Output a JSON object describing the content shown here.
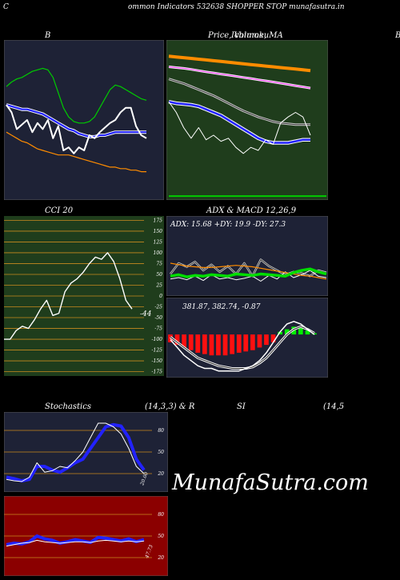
{
  "header": {
    "left_letter": "C",
    "title": "ommon  Indicators 532638  SHOPPER STOP munafasutra.in"
  },
  "panels": {
    "bb": {
      "title": "B"
    },
    "price": {
      "title": "Price,  Volume,  MA",
      "title_overlap": "Ichimoku"
    },
    "edge": {
      "title": "B"
    },
    "cci": {
      "title": "CCI 20",
      "value_label": "-44"
    },
    "adx": {
      "title": "ADX  & MACD 12,26,9",
      "adx_label": "ADX: 15.68  +DY: 19.9 -DY: 27.3",
      "macd_label": "381.87,  382.74,  -0.87"
    },
    "stoch": {
      "title_left": "Stochastics",
      "title_mid": "(14,3,3) & R",
      "title_si": "SI",
      "title_right": "(14,5",
      "value_label": "20.00"
    },
    "rsi": {
      "value_label": "47.73"
    }
  },
  "watermark": "MunafaSutra.com",
  "colors": {
    "panel_dark": "#1e2236",
    "panel_green": "#1f3d1c",
    "panel_red": "#8b0000",
    "gridline": "#c88a1e",
    "green_band": "#00cc00",
    "blue_line": "#2222ff",
    "orange": "#ff8c00",
    "white": "#ffffff"
  },
  "chart_data": [
    {
      "type": "line",
      "name": "bollinger",
      "title": "B",
      "ylim": [
        0,
        100
      ],
      "series": [
        {
          "name": "upper",
          "values": [
            72,
            75,
            77,
            78,
            80,
            82,
            83,
            84,
            83,
            78,
            68,
            58,
            52,
            49,
            48,
            48,
            49,
            52,
            58,
            64,
            70,
            73,
            72,
            70,
            68,
            66,
            64,
            63
          ]
        },
        {
          "name": "middle",
          "values": [
            60,
            59,
            58,
            57,
            57,
            56,
            55,
            54,
            52,
            50,
            48,
            46,
            44,
            43,
            41,
            40,
            39,
            39,
            40,
            40,
            41,
            42,
            42,
            42,
            42,
            42,
            42,
            42
          ]
        },
        {
          "name": "lower",
          "values": [
            42,
            40,
            38,
            36,
            35,
            33,
            31,
            30,
            29,
            28,
            27,
            27,
            27,
            26,
            25,
            24,
            23,
            22,
            21,
            20,
            19,
            19,
            18,
            18,
            17,
            17,
            16,
            16
          ]
        },
        {
          "name": "price",
          "values": [
            60,
            55,
            44,
            47,
            50,
            42,
            48,
            44,
            50,
            38,
            46,
            30,
            32,
            28,
            32,
            30,
            40,
            38,
            42,
            45,
            48,
            50,
            55,
            58,
            58,
            46,
            40,
            38
          ]
        }
      ]
    },
    {
      "type": "line",
      "name": "price_ma",
      "title": "Price,  Volume,  MA",
      "ylim": [
        0,
        100
      ],
      "series": [
        {
          "name": "ma_orange",
          "values": [
            92,
            91.5,
            91,
            90.5,
            90,
            89.5,
            89,
            88.5,
            88,
            87.5,
            87,
            86.5,
            86,
            85.5,
            85,
            84.5,
            84,
            83.5,
            83,
            82.5
          ]
        },
        {
          "name": "ma_magenta",
          "values": [
            85,
            84.5,
            84,
            83.3,
            82.5,
            81.7,
            81,
            80.2,
            79.5,
            78.8,
            78,
            77.3,
            76.5,
            75.8,
            75,
            74.2,
            73.4,
            72.6,
            71.8,
            71
          ]
        },
        {
          "name": "ma_grey",
          "values": [
            77,
            75.5,
            74,
            72,
            70,
            68,
            66,
            63.5,
            61,
            58.5,
            56,
            54,
            52,
            50.5,
            49,
            48,
            47.5,
            47,
            47,
            47
          ]
        },
        {
          "name": "ma_blue",
          "values": [
            62,
            61,
            60.5,
            60,
            59,
            57,
            55,
            53,
            50,
            47,
            44,
            41,
            38,
            36,
            35,
            35,
            35,
            36,
            37,
            37
          ]
        },
        {
          "name": "price",
          "values": [
            62,
            55,
            45,
            38,
            45,
            37,
            40,
            36,
            38,
            32,
            28,
            32,
            30,
            37,
            34,
            48,
            52,
            55,
            52,
            40
          ]
        },
        {
          "name": "volume_base",
          "values": [
            1,
            1,
            1,
            1,
            1,
            1,
            1,
            1,
            1,
            1,
            1,
            1,
            1,
            1,
            1,
            1,
            1,
            1,
            1,
            1
          ]
        }
      ]
    },
    {
      "type": "line",
      "name": "cci",
      "title": "CCI 20",
      "ylim": [
        -185,
        185
      ],
      "ticks": [
        175,
        150,
        125,
        100,
        75,
        50,
        25,
        0,
        -25,
        -50,
        -75,
        -100,
        -125,
        -150,
        -175
      ],
      "series": [
        {
          "name": "cci",
          "values": [
            -100,
            -100,
            -80,
            -70,
            -75,
            -55,
            -30,
            -10,
            -45,
            -40,
            10,
            30,
            40,
            55,
            75,
            90,
            85,
            100,
            80,
            40,
            -10,
            -30
          ]
        }
      ]
    },
    {
      "type": "line",
      "name": "adx",
      "ylim": [
        0,
        100
      ],
      "series": [
        {
          "name": "adx_orange",
          "values": [
            40,
            38,
            36,
            35,
            34,
            34,
            35,
            36,
            37,
            36,
            35,
            33,
            31,
            29,
            27,
            25,
            23,
            22,
            20,
            18
          ]
        },
        {
          "name": "plus_dy",
          "values": [
            18,
            20,
            17,
            22,
            16,
            24,
            18,
            20,
            17,
            19,
            22,
            15,
            23,
            18,
            28,
            20,
            24,
            30,
            22,
            20
          ]
        },
        {
          "name": "minus_dy",
          "values": [
            25,
            40,
            35,
            42,
            30,
            38,
            28,
            36,
            25,
            40,
            22,
            45,
            36,
            30,
            24,
            28,
            26,
            22,
            30,
            27
          ]
        },
        {
          "name": "green_strength",
          "values": [
            22,
            24,
            21,
            23,
            22,
            24,
            23,
            22,
            25,
            24,
            23,
            25,
            24,
            23,
            22,
            27,
            30,
            32,
            28,
            25
          ]
        }
      ]
    },
    {
      "type": "bar",
      "name": "macd",
      "ylim": [
        -15,
        8
      ],
      "series": [
        {
          "name": "histogram",
          "values": [
            -3,
            -4,
            -5,
            -6,
            -7,
            -7.5,
            -8,
            -8,
            -8,
            -7.5,
            -7,
            -6.5,
            -6,
            -5,
            -4,
            -3,
            1,
            2,
            3,
            2.5,
            1.5,
            0.5
          ]
        },
        {
          "name": "macd_line",
          "values": [
            -2,
            -5,
            -8,
            -10,
            -12,
            -13,
            -13,
            -14,
            -14,
            -14,
            -14,
            -13,
            -12,
            -10,
            -7,
            -3,
            1,
            4,
            5,
            4,
            2,
            0
          ]
        },
        {
          "name": "signal_line",
          "values": [
            -1,
            -3,
            -5,
            -7,
            -9,
            -10,
            -11,
            -12,
            -12.5,
            -13,
            -13,
            -13,
            -12.5,
            -11,
            -9,
            -6,
            -3,
            0,
            2,
            3,
            2,
            0.5
          ]
        }
      ]
    },
    {
      "type": "line",
      "name": "stochastics",
      "ylim": [
        0,
        100
      ],
      "ticks": [
        80,
        50,
        20
      ],
      "series": [
        {
          "name": "k_blue",
          "values": [
            15,
            13,
            10,
            12,
            30,
            30,
            25,
            22,
            28,
            35,
            40,
            55,
            70,
            85,
            88,
            86,
            70,
            40,
            25
          ]
        },
        {
          "name": "d_white",
          "values": [
            12,
            10,
            9,
            15,
            35,
            22,
            24,
            30,
            28,
            38,
            50,
            70,
            90,
            90,
            85,
            75,
            55,
            30,
            20
          ]
        }
      ]
    },
    {
      "type": "line",
      "name": "rsi",
      "ylim": [
        0,
        100
      ],
      "ticks": [
        80,
        50,
        20
      ],
      "series": [
        {
          "name": "rsi_blue",
          "values": [
            38,
            40,
            39,
            42,
            50,
            46,
            44,
            40,
            42,
            45,
            43,
            41,
            48,
            47,
            45,
            43,
            46,
            42,
            45
          ]
        },
        {
          "name": "rsi_white",
          "values": [
            36,
            38,
            40,
            41,
            44,
            42,
            41,
            40,
            41,
            42,
            42,
            41,
            43,
            44,
            43,
            42,
            43,
            42,
            43
          ]
        }
      ]
    }
  ]
}
